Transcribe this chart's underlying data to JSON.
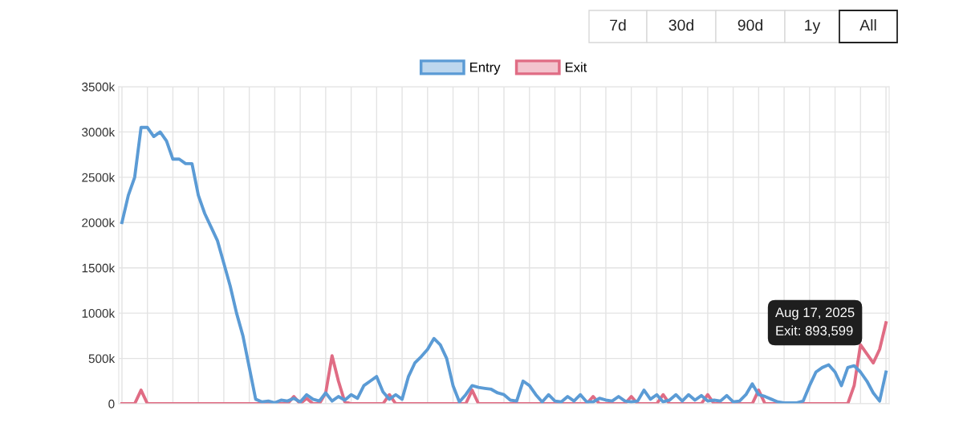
{
  "chart_data": {
    "type": "line",
    "categories": [
      null,
      null,
      null,
      null,
      null,
      null,
      null,
      null,
      null,
      null,
      null,
      null,
      null,
      null,
      null,
      null,
      null,
      null,
      null,
      null,
      null,
      null,
      null,
      null,
      null,
      null,
      null,
      null,
      null,
      null,
      null,
      null,
      null,
      null,
      null,
      null,
      null,
      null,
      null,
      null,
      null,
      null,
      null,
      null,
      null,
      null,
      null,
      null,
      null,
      null,
      null,
      null,
      null,
      null,
      null,
      null,
      null,
      null,
      null,
      null,
      null,
      null,
      null,
      null,
      null,
      null,
      null,
      null,
      null,
      null,
      null,
      null,
      null,
      null,
      null,
      null,
      null,
      null,
      null,
      null,
      null,
      null,
      null,
      null,
      null,
      null,
      null,
      null,
      null,
      null,
      null,
      null,
      null,
      null,
      null,
      null,
      null,
      null,
      null,
      null,
      null,
      null,
      null,
      null,
      null,
      null,
      null,
      null,
      null,
      null,
      null,
      null,
      null,
      null,
      null,
      null,
      null,
      null,
      null,
      null,
      null
    ],
    "series": [
      {
        "name": "Entry",
        "color": "#5b9bd5",
        "values": [
          2000000,
          2300000,
          2500000,
          3050000,
          3050000,
          2950000,
          3000000,
          2900000,
          2700000,
          2700000,
          2650000,
          2650000,
          2300000,
          2100000,
          1950000,
          1800000,
          1550000,
          1300000,
          1000000,
          750000,
          400000,
          50000,
          20000,
          30000,
          10000,
          40000,
          30000,
          60000,
          20000,
          100000,
          50000,
          30000,
          120000,
          30000,
          80000,
          40000,
          100000,
          60000,
          200000,
          250000,
          300000,
          130000,
          50000,
          100000,
          50000,
          300000,
          450000,
          520000,
          600000,
          720000,
          650000,
          500000,
          200000,
          20000,
          100000,
          200000,
          180000,
          170000,
          160000,
          120000,
          100000,
          40000,
          30000,
          250000,
          200000,
          100000,
          20000,
          100000,
          30000,
          20000,
          80000,
          30000,
          100000,
          20000,
          20000,
          60000,
          40000,
          30000,
          80000,
          30000,
          20000,
          30000,
          150000,
          50000,
          100000,
          20000,
          40000,
          100000,
          30000,
          100000,
          40000,
          90000,
          30000,
          40000,
          30000,
          90000,
          20000,
          30000,
          100000,
          220000,
          100000,
          80000,
          50000,
          20000,
          10000,
          10000,
          10000,
          30000,
          200000,
          350000,
          400000,
          430000,
          350000,
          200000,
          400000,
          420000,
          350000,
          250000,
          120000,
          30000,
          350000
        ]
      },
      {
        "name": "Exit",
        "color": "#e06c84",
        "values": [
          0,
          0,
          0,
          150000,
          0,
          0,
          0,
          0,
          0,
          0,
          0,
          0,
          0,
          0,
          0,
          0,
          0,
          0,
          0,
          0,
          0,
          0,
          0,
          0,
          0,
          0,
          0,
          80000,
          0,
          60000,
          0,
          0,
          120000,
          530000,
          250000,
          20000,
          0,
          0,
          0,
          0,
          0,
          0,
          100000,
          0,
          0,
          0,
          0,
          0,
          0,
          0,
          0,
          0,
          0,
          0,
          0,
          150000,
          0,
          0,
          0,
          0,
          0,
          0,
          0,
          0,
          0,
          0,
          0,
          0,
          0,
          0,
          0,
          0,
          0,
          0,
          80000,
          0,
          0,
          0,
          0,
          0,
          80000,
          0,
          0,
          0,
          0,
          100000,
          0,
          0,
          0,
          0,
          0,
          0,
          100000,
          0,
          0,
          0,
          0,
          0,
          0,
          0,
          150000,
          0,
          0,
          0,
          0,
          0,
          0,
          0,
          0,
          0,
          0,
          0,
          0,
          0,
          0,
          200000,
          650000,
          550000,
          450000,
          600000,
          893599
        ]
      }
    ],
    "ylim": [
      0,
      3500000
    ],
    "yticks": [
      {
        "value": 0,
        "label": "0"
      },
      {
        "value": 500000,
        "label": "500k"
      },
      {
        "value": 1000000,
        "label": "1000k"
      },
      {
        "value": 1500000,
        "label": "1500k"
      },
      {
        "value": 2000000,
        "label": "2000k"
      },
      {
        "value": 2500000,
        "label": "2500k"
      },
      {
        "value": 3000000,
        "label": "3000k"
      },
      {
        "value": 3500000,
        "label": "3500k"
      }
    ],
    "grid": true,
    "legend": "top",
    "marker": "none",
    "line_style": "solid",
    "annotations": [
      "7d",
      "30d",
      "90d",
      "1y",
      "All",
      "Aug 17, 2025\nExit: 893,599"
    ]
  }
}
